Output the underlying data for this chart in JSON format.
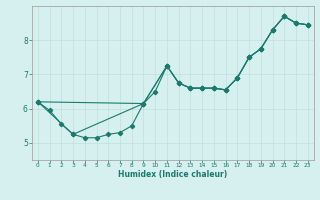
{
  "title": "",
  "xlabel": "Humidex (Indice chaleur)",
  "ylabel": "",
  "bg_color": "#d6f0ef",
  "line_color": "#1a7a6e",
  "grid_color": "#b8dbd9",
  "xlim": [
    -0.5,
    23.5
  ],
  "ylim": [
    4.5,
    9.0
  ],
  "yticks": [
    5,
    6,
    7,
    8
  ],
  "xticks": [
    0,
    1,
    2,
    3,
    4,
    5,
    6,
    7,
    8,
    9,
    10,
    11,
    12,
    13,
    14,
    15,
    16,
    17,
    18,
    19,
    20,
    21,
    22,
    23
  ],
  "line1_x": [
    0,
    1,
    2,
    3,
    4,
    5,
    6,
    7,
    8,
    9,
    10,
    11,
    12,
    13,
    14,
    15,
    16,
    17,
    18,
    19,
    20,
    21,
    22,
    23
  ],
  "line1_y": [
    6.2,
    5.95,
    5.55,
    5.25,
    5.15,
    5.15,
    5.25,
    5.3,
    5.5,
    6.15,
    6.5,
    7.25,
    6.75,
    6.6,
    6.6,
    6.6,
    6.55,
    6.9,
    7.5,
    7.75,
    8.3,
    8.7,
    8.5,
    8.45
  ],
  "line2_x": [
    0,
    3,
    9,
    11,
    12,
    13,
    14,
    15,
    16,
    17,
    18,
    19,
    20,
    21,
    22,
    23
  ],
  "line2_y": [
    6.2,
    5.25,
    6.15,
    7.25,
    6.75,
    6.6,
    6.6,
    6.6,
    6.55,
    6.9,
    7.5,
    7.75,
    8.3,
    8.7,
    8.5,
    8.45
  ],
  "line3_x": [
    0,
    9,
    11,
    12,
    13,
    14,
    15,
    16,
    17,
    18,
    19,
    20,
    21,
    22,
    23
  ],
  "line3_y": [
    6.2,
    6.15,
    7.25,
    6.75,
    6.6,
    6.6,
    6.6,
    6.55,
    6.9,
    7.5,
    7.75,
    8.3,
    8.7,
    8.5,
    8.45
  ]
}
